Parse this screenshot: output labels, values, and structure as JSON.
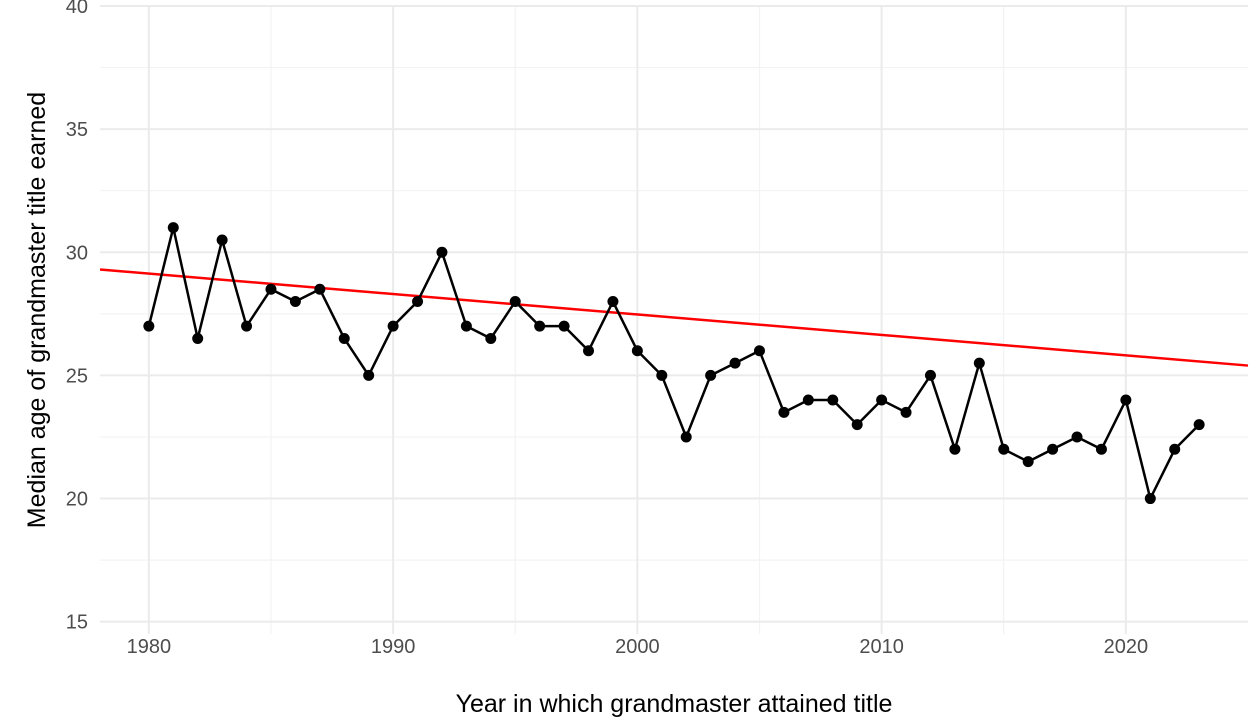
{
  "chart_data": {
    "type": "line",
    "xlabel": "Year in which grandmaster attained title",
    "ylabel": "Median age of grandmaster title earned",
    "xlim": [
      1978,
      2025
    ],
    "ylim": [
      14.5,
      40
    ],
    "x_ticks": [
      1980,
      1990,
      2000,
      2010,
      2020
    ],
    "y_ticks": [
      15,
      20,
      25,
      30,
      35,
      40
    ],
    "grid": true,
    "legend": "none",
    "series": [
      {
        "x": [
          1980,
          1981,
          1982,
          1983,
          1984,
          1985,
          1986,
          1987,
          1988,
          1989,
          1990,
          1991,
          1992,
          1993,
          1994,
          1995,
          1996,
          1997,
          1998,
          1999,
          2000,
          2001,
          2002,
          2003,
          2004,
          2005,
          2006,
          2007,
          2008,
          2009,
          2010,
          2011,
          2012,
          2013,
          2014,
          2015,
          2016,
          2017,
          2018,
          2019,
          2020,
          2021,
          2022,
          2023
        ],
        "y": [
          27,
          31,
          26.5,
          30.5,
          27,
          28.5,
          28,
          28.5,
          26.5,
          25,
          27,
          28,
          30,
          27,
          26.5,
          28,
          27,
          27,
          26,
          28,
          26,
          25,
          22.5,
          25,
          25.5,
          26,
          23.5,
          24,
          24,
          23,
          24,
          23.5,
          25,
          22,
          25.5,
          22,
          21.5,
          22,
          22.5,
          22,
          24,
          20,
          22,
          23
        ],
        "color": "#000000"
      }
    ],
    "trend_line": {
      "x": [
        1978,
        2025
      ],
      "y": [
        29.3,
        25.4
      ],
      "color": "#ff0000"
    }
  }
}
